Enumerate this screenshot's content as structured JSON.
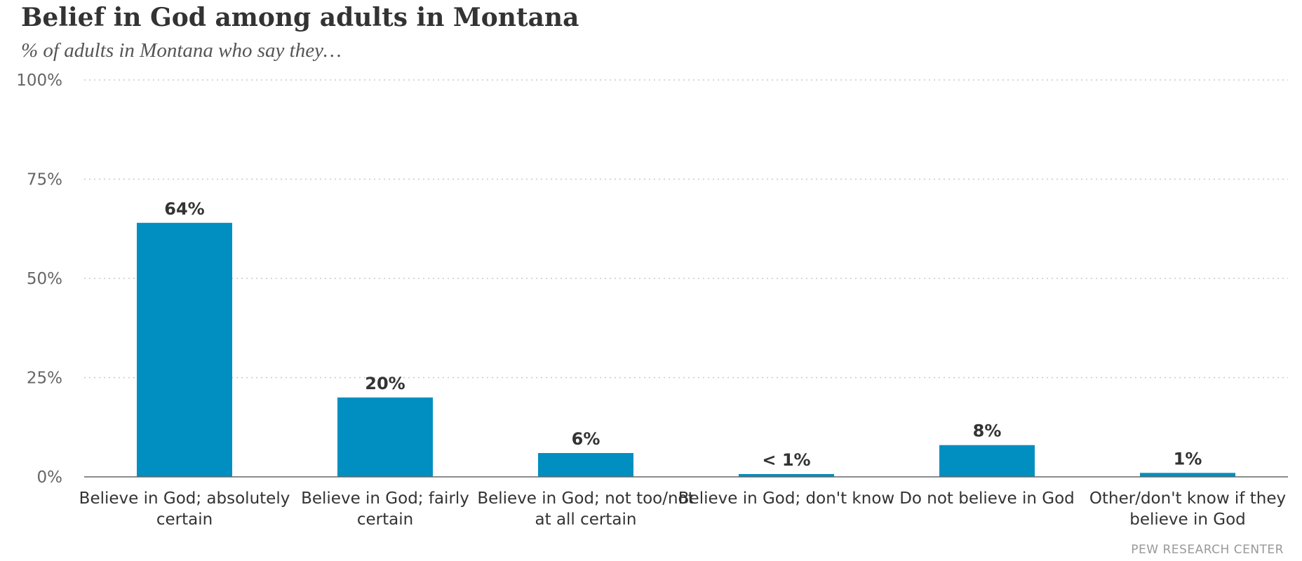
{
  "header": {
    "title": "Belief in God among adults in Montana",
    "subtitle": "% of adults in Montana who say they…"
  },
  "footer": {
    "source": "PEW RESEARCH CENTER"
  },
  "colors": {
    "bar": "#008fc0",
    "grid": "#c8c8c8",
    "axis": "#666666"
  },
  "chart_data": {
    "type": "bar",
    "title": "Belief in God among adults in Montana",
    "subtitle": "% of adults in Montana who say they…",
    "categories": [
      [
        "Believe in God; absolutely",
        "certain"
      ],
      [
        "Believe in God; fairly",
        "certain"
      ],
      [
        "Believe in God; not too/not",
        "at all certain"
      ],
      [
        "Believe in God; don't know"
      ],
      [
        "Do not believe in God"
      ],
      [
        "Other/don't know if they",
        "believe in God"
      ]
    ],
    "values": [
      64,
      20,
      6,
      0.5,
      8,
      1
    ],
    "data_labels": [
      "64%",
      "20%",
      "6%",
      "< 1%",
      "8%",
      "1%"
    ],
    "ylim": [
      0,
      100
    ],
    "yticks": [
      0,
      25,
      50,
      75,
      100
    ],
    "ytick_labels": [
      "0%",
      "25%",
      "50%",
      "75%",
      "100%"
    ],
    "grid": true,
    "legend": "none"
  }
}
